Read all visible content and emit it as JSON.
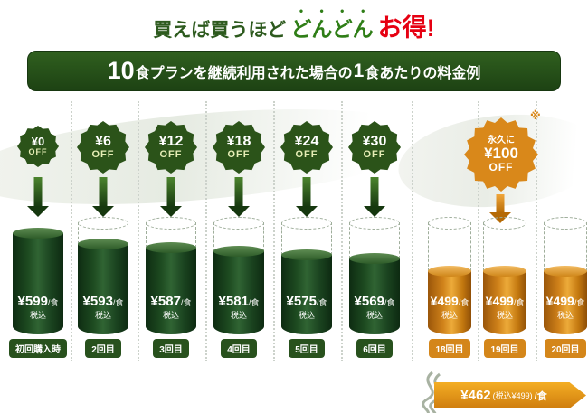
{
  "colors": {
    "green": "#2b5319",
    "dark_green": "#16380f",
    "orange": "#d9881a",
    "red": "#e60012"
  },
  "header": {
    "part1": "買えば買うほど",
    "part2": "どんどん",
    "part3": "お得!"
  },
  "banner": {
    "num1": "10",
    "text1": "食プランを継続利用された場合の",
    "num2": "1",
    "text2": "食あたりの料金例"
  },
  "columns": [
    {
      "label": "初回購入時",
      "badge": {
        "top": "¥0",
        "bottom": "OFF"
      },
      "price": "¥599",
      "unit": "/食",
      "tax": "税込"
    },
    {
      "label": "2回目",
      "badge": {
        "top": "¥6",
        "bottom": "OFF"
      },
      "price": "¥593",
      "unit": "/食",
      "tax": "税込"
    },
    {
      "label": "3回目",
      "badge": {
        "top": "¥12",
        "bottom": "OFF"
      },
      "price": "¥587",
      "unit": "/食",
      "tax": "税込"
    },
    {
      "label": "4回目",
      "badge": {
        "top": "¥18",
        "bottom": "OFF"
      },
      "price": "¥581",
      "unit": "/食",
      "tax": "税込"
    },
    {
      "label": "5回目",
      "badge": {
        "top": "¥24",
        "bottom": "OFF"
      },
      "price": "¥575",
      "unit": "/食",
      "tax": "税込"
    },
    {
      "label": "6回目",
      "badge": {
        "top": "¥30",
        "bottom": "OFF"
      },
      "price": "¥569",
      "unit": "/食",
      "tax": "税込"
    },
    {
      "label": "18回目",
      "price": "¥499",
      "unit": "/食",
      "tax": "税込"
    },
    {
      "label": "19回目",
      "price": "¥499",
      "unit": "/食",
      "tax": "税込"
    },
    {
      "label": "20回目",
      "price": "¥499",
      "unit": "/食",
      "tax": "税込"
    }
  ],
  "orange_badge": {
    "note": "※",
    "line1": "永久に",
    "line2": "¥100",
    "line3": "OFF"
  },
  "bottom_banner": {
    "price": "¥462",
    "tax": "(税込¥499)",
    "unit": "/食"
  },
  "chart_data": {
    "type": "bar",
    "title": "10食プランを継続利用された場合の1食あたりの料金例",
    "categories": [
      "初回購入時",
      "2回目",
      "3回目",
      "4回目",
      "5回目",
      "6回目",
      "18回目",
      "19回目",
      "20回目"
    ],
    "values": [
      599,
      593,
      587,
      581,
      575,
      569,
      499,
      499,
      499
    ],
    "discounts_yen": [
      0,
      6,
      12,
      18,
      24,
      30,
      100,
      100,
      100
    ],
    "permanent_discount_note": "永久に¥100OFF",
    "final_price_note": "¥462(税込¥499)/食",
    "unit": "円/食(税込)",
    "xlabel": "",
    "ylabel": "",
    "grid": false,
    "legend_position": "none"
  }
}
